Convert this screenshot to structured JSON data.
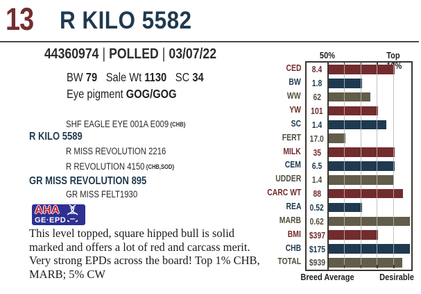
{
  "header": {
    "lot_number": "13",
    "name": "R KILO 5582",
    "reg_number": "44360974",
    "horn_status": "POLLED",
    "birth_date": "03/07/22",
    "separator": "|"
  },
  "stats": {
    "items": [
      {
        "label": "BW",
        "value": "79"
      },
      {
        "label": "Sale Wt",
        "value": "1130"
      },
      {
        "label": "SC",
        "value": "34"
      }
    ],
    "eye_label": "Eye pigment",
    "eye_value": "GOG/GOG"
  },
  "pedigree": [
    {
      "name": "SHF EAGLE EYE 001A E009",
      "suffix": "{CHB}",
      "bold": false,
      "indent": true
    },
    {
      "name": "R KILO 5589",
      "suffix": "",
      "bold": true,
      "indent": false
    },
    {
      "name": "R MISS REVOLUTION 2216",
      "suffix": "",
      "bold": false,
      "indent": true
    },
    {
      "name": "R REVOLUTION 4150",
      "suffix": "{CHB,SOD}",
      "bold": false,
      "indent": true
    },
    {
      "name": "GR MISS REVOLUTION 895",
      "suffix": "",
      "bold": true,
      "indent": false
    },
    {
      "name": "GR MISS FELT1930",
      "suffix": "",
      "bold": false,
      "indent": true
    }
  ],
  "logo": {
    "line1": "AHA",
    "line2": "GE·EPD",
    "bg_color": "#2E3192",
    "aha_color": "#C42032"
  },
  "description": "This level topped, square hipped bull is solid marked and offers a lot of red and carcass merit. Very strong EPDs across the board! Top 1% CHB, MARB;  5% CW",
  "chart_data": {
    "type": "bar",
    "orientation": "horizontal",
    "top_axis_labels": [
      "50%",
      "Top 10%"
    ],
    "bottom_axis_labels": [
      "Breed Average",
      "Desirable"
    ],
    "axis_note": "bars start at 50th percentile, right edge is most desirable, gridlines each 10 percentile",
    "gridlines_percent": [
      20,
      40,
      60,
      80
    ],
    "colors": {
      "red": "#722C2E",
      "navy": "#1F3A50",
      "olive": "#615D4A",
      "olive_text": "#514E3F"
    },
    "rows": [
      {
        "label": "CED",
        "value": "8.4",
        "bar_pct": 80,
        "color": "red"
      },
      {
        "label": "BW",
        "value": "1.8",
        "bar_pct": 40,
        "color": "navy"
      },
      {
        "label": "WW",
        "value": "62",
        "bar_pct": 50,
        "color": "olive"
      },
      {
        "label": "YW",
        "value": "101",
        "bar_pct": 60,
        "color": "red"
      },
      {
        "label": "SC",
        "value": "1.4",
        "bar_pct": 70,
        "color": "navy"
      },
      {
        "label": "FERT",
        "value": "17.0",
        "bar_pct": 20,
        "color": "olive"
      },
      {
        "label": "MILK",
        "value": "35",
        "bar_pct": 80,
        "color": "red"
      },
      {
        "label": "CEM",
        "value": "6.5",
        "bar_pct": 80,
        "color": "navy"
      },
      {
        "label": "UDDER",
        "value": "1.4",
        "bar_pct": 79,
        "color": "olive"
      },
      {
        "label": "CARC WT",
        "value": "88",
        "bar_pct": 90,
        "color": "red"
      },
      {
        "label": "REA",
        "value": "0.52",
        "bar_pct": 40,
        "color": "navy"
      },
      {
        "label": "MARB",
        "value": "0.62",
        "bar_pct": 98,
        "color": "olive"
      },
      {
        "label": "BMI",
        "value": "$397",
        "bar_pct": 60,
        "color": "red"
      },
      {
        "label": "CHB",
        "value": "$175",
        "bar_pct": 98,
        "color": "navy"
      },
      {
        "label": "TOTAL",
        "value": "$939",
        "bar_pct": 89,
        "color": "olive"
      }
    ]
  }
}
